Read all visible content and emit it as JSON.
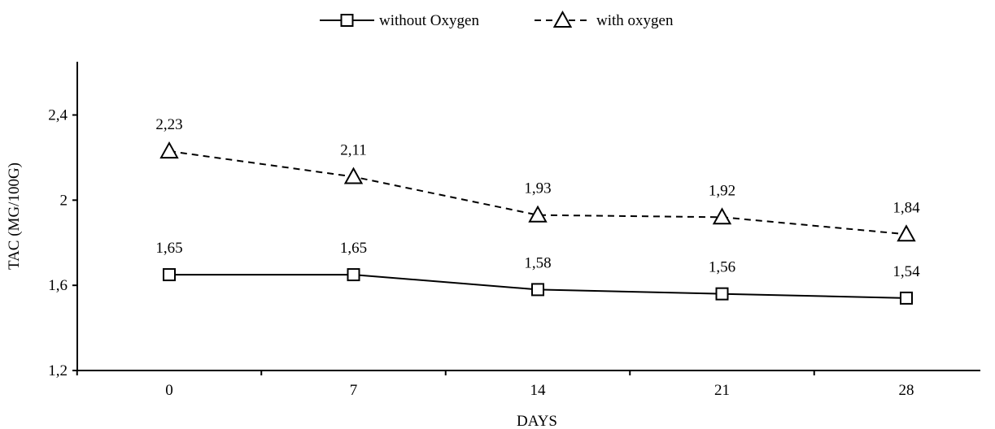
{
  "chart_data": {
    "type": "line",
    "x": [
      0,
      7,
      14,
      21,
      28
    ],
    "x_tick_labels": [
      "0",
      "7",
      "14",
      "21",
      "28"
    ],
    "y_ticks": [
      1.2,
      1.6,
      2.0,
      2.4
    ],
    "y_tick_labels": [
      "1,2",
      "1,6",
      "2",
      "2,4"
    ],
    "ylim": [
      1.2,
      2.65
    ],
    "xlabel": "DAYS",
    "ylabel": "TAC (MG/100G)",
    "legend_position": "top-center",
    "grid": false,
    "series": [
      {
        "name": "without Oxygen",
        "marker": "square",
        "line_style": "solid",
        "values": [
          1.65,
          1.65,
          1.58,
          1.56,
          1.54
        ],
        "labels": [
          "1,65",
          "1,65",
          "1,58",
          "1,56",
          "1,54"
        ]
      },
      {
        "name": "with oxygen",
        "marker": "triangle",
        "line_style": "dashed",
        "values": [
          2.23,
          2.11,
          1.93,
          1.92,
          1.84
        ],
        "labels": [
          "2,23",
          "2,11",
          "1,93",
          "1,92",
          "1,84"
        ]
      }
    ]
  }
}
